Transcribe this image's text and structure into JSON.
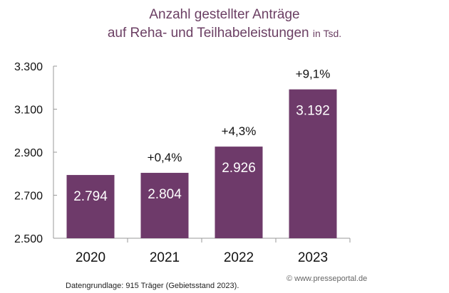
{
  "chart_data": {
    "type": "bar",
    "title_line1": "Anzahl gestellter Anträge",
    "title_line2": "auf Reha- und Teilhabeleistungen",
    "title_unit": "in Tsd.",
    "categories": [
      "2020",
      "2021",
      "2022",
      "2023"
    ],
    "values": [
      2794,
      2804,
      2926,
      3192
    ],
    "value_labels": [
      "2.794",
      "2.804",
      "2.926",
      "3.192"
    ],
    "change_labels": [
      "",
      "+0,4%",
      "+4,3%",
      "+9,1%"
    ],
    "ylim": [
      2500,
      3300
    ],
    "yticks": [
      2500,
      2700,
      2900,
      3100,
      3300
    ],
    "ytick_labels": [
      "2.500",
      "2.700",
      "2.900",
      "3.100",
      "3.300"
    ],
    "grid": false,
    "bar_color": "#6e3a6a",
    "title_color": "#6b3f63"
  },
  "footer": {
    "source": "Datengrundlage: 915 Träger (Gebietsstand 2023).",
    "watermark": "© www.presseportal.de"
  }
}
